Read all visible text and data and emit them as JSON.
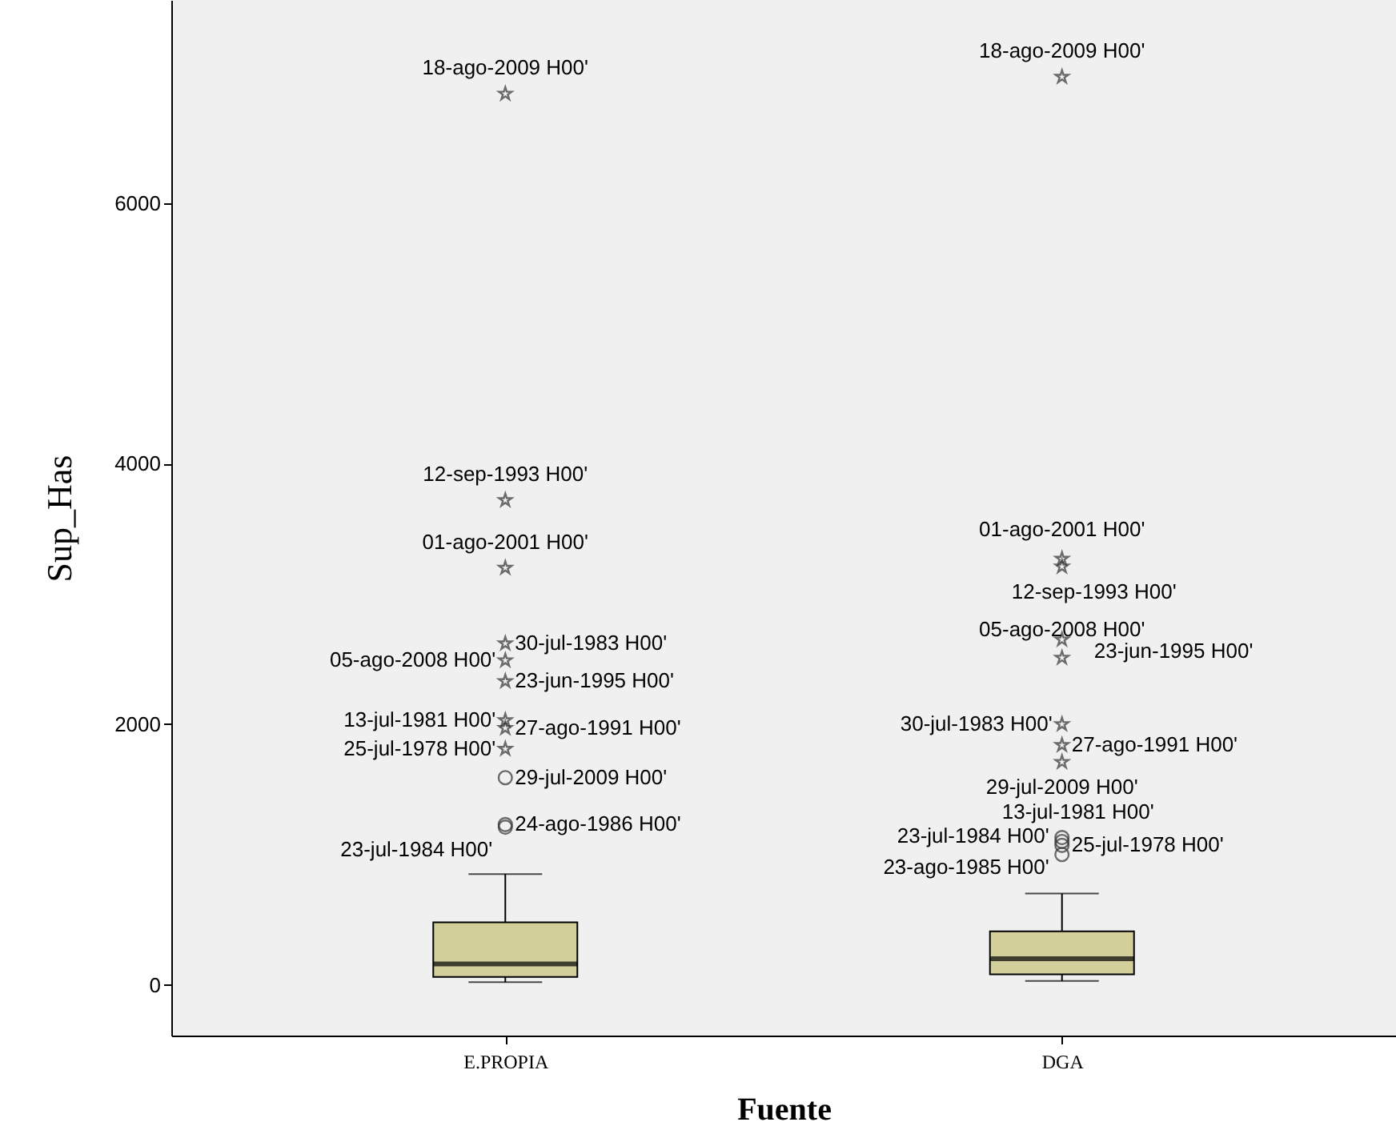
{
  "chart_data": {
    "type": "box",
    "xlabel": "Fuente",
    "ylabel": "Sup_Has",
    "categories": [
      "E.PROPIA",
      "DGA"
    ],
    "boxes": [
      {
        "low": 20,
        "q1": 60,
        "median": 160,
        "q3": 480,
        "high": 850,
        "outliers": [
          6840,
          3720,
          3200,
          2620,
          2490,
          2330,
          2030,
          1970,
          1810,
          1590,
          1230,
          1210
        ]
      },
      {
        "low": 30,
        "q1": 80,
        "median": 200,
        "q3": 410,
        "high": 700,
        "outliers": [
          6970,
          3270,
          3210,
          2650,
          2510,
          2000,
          1840,
          1710,
          1130,
          1070,
          1100,
          1000
        ]
      }
    ],
    "color": "#d3cf9b",
    "ylim": [
      -390,
      7560
    ],
    "yticks": [
      0,
      2000,
      4000,
      6000
    ],
    "grid": false,
    "annotations": [
      "18-ago-2009 H00'",
      "12-sep-1993 H00'",
      "01-ago-2001 H00'",
      "30-jul-1983 H00'",
      "05-ago-2008 H00'",
      "23-jun-1995 H00'",
      "13-jul-1981 H00'",
      "27-ago-1991 H00'",
      "25-jul-1978 H00'",
      "29-jul-2009 H00'",
      "24-ago-1986 H00'",
      "23-jul-1984 H00'",
      "18-ago-2009 H00'",
      "01-ago-2001 H00'",
      "12-sep-1993 H00'",
      "05-ago-2008 H00'",
      "23-jun-1995 H00'",
      "30-jul-1983 H00'",
      "27-ago-1991 H00'",
      "29-jul-2009 H00'",
      "13-jul-1981 H00'",
      "25-jul-1978 H00'",
      "23-jul-1984 H00'",
      "23-ago-1985 H00'"
    ]
  }
}
